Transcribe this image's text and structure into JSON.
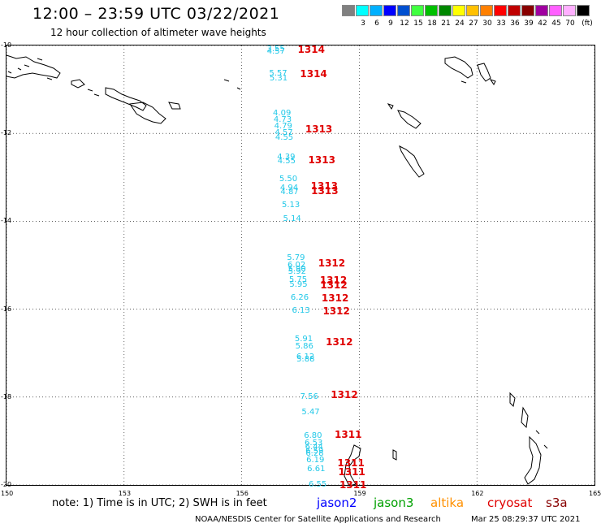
{
  "header": {
    "title": "12:00 – 23:59 UTC 03/22/2021",
    "subtitle": "12 hour collection of altimeter wave heights"
  },
  "legend": {
    "swatches": [
      {
        "color": "#808080",
        "label": ""
      },
      {
        "color": "#00ffff",
        "label": "3"
      },
      {
        "color": "#00b0ff",
        "label": "6"
      },
      {
        "color": "#0000ff",
        "label": "9"
      },
      {
        "color": "#0050d0",
        "label": "12"
      },
      {
        "color": "#40ff40",
        "label": "15"
      },
      {
        "color": "#00c000",
        "label": "18"
      },
      {
        "color": "#008800",
        "label": "21"
      },
      {
        "color": "#ffff00",
        "label": "24"
      },
      {
        "color": "#ffc000",
        "label": "27"
      },
      {
        "color": "#ff8000",
        "label": "30"
      },
      {
        "color": "#ff0000",
        "label": "33"
      },
      {
        "color": "#c00000",
        "label": "36"
      },
      {
        "color": "#880000",
        "label": "39"
      },
      {
        "color": "#a000a0",
        "label": "42"
      },
      {
        "color": "#ff60ff",
        "label": "45"
      },
      {
        "color": "#ffb0ff",
        "label": "70"
      },
      {
        "color": "#000000",
        "label": "(ft)"
      }
    ]
  },
  "axes": {
    "lat_ticks": [
      "-10",
      "-12",
      "-14",
      "-16",
      "-18",
      "-20"
    ],
    "lon_ticks": [
      "150",
      "153",
      "156",
      "159",
      "162",
      "165"
    ],
    "lat_range": [
      -20,
      -10
    ],
    "lon_range": [
      150,
      165
    ],
    "grid": true,
    "gridline_style": "dotted"
  },
  "observations": [
    {
      "lat": -10.1,
      "wave": "3.55"
    },
    {
      "lat": -10.15,
      "wave": "4.57"
    },
    {
      "lat": -10.65,
      "wave": "5.57"
    },
    {
      "lat": -10.75,
      "wave": "5.31"
    },
    {
      "lat": -11.55,
      "wave": "4.09"
    },
    {
      "lat": -11.7,
      "wave": "4.73"
    },
    {
      "lat": -11.85,
      "wave": "4.79"
    },
    {
      "lat": -12.0,
      "wave": "4.57"
    },
    {
      "lat": -12.1,
      "wave": "4.55"
    },
    {
      "lat": -12.55,
      "wave": "4.39"
    },
    {
      "lat": -12.65,
      "wave": "4.55"
    },
    {
      "lat": -13.05,
      "wave": "5.50"
    },
    {
      "lat": -13.25,
      "wave": "4.94"
    },
    {
      "lat": -13.35,
      "wave": "4.87"
    },
    {
      "lat": -13.65,
      "wave": "5.13"
    },
    {
      "lat": -13.95,
      "wave": "5.14"
    },
    {
      "lat": -14.85,
      "wave": "5.79"
    },
    {
      "lat": -15.0,
      "wave": "6.02"
    },
    {
      "lat": -15.1,
      "wave": "5.90"
    },
    {
      "lat": -15.15,
      "wave": "5.92"
    },
    {
      "lat": -15.35,
      "wave": "5.75"
    },
    {
      "lat": -15.45,
      "wave": "5.95"
    },
    {
      "lat": -15.75,
      "wave": "6.26"
    },
    {
      "lat": -16.05,
      "wave": "6.13"
    },
    {
      "lat": -16.7,
      "wave": "5.91"
    },
    {
      "lat": -16.85,
      "wave": "5.86"
    },
    {
      "lat": -17.1,
      "wave": "6.12"
    },
    {
      "lat": -17.15,
      "wave": "5.88"
    },
    {
      "lat": -18.0,
      "wave": "7.56"
    },
    {
      "lat": -18.35,
      "wave": "5.47"
    },
    {
      "lat": -18.9,
      "wave": "6.80"
    },
    {
      "lat": -19.05,
      "wave": "6.53"
    },
    {
      "lat": -19.15,
      "wave": "6.44"
    },
    {
      "lat": -19.25,
      "wave": "6.59"
    },
    {
      "lat": -19.3,
      "wave": "6.28"
    },
    {
      "lat": -19.45,
      "wave": "6.19"
    },
    {
      "lat": -19.65,
      "wave": "6.61"
    },
    {
      "lat": -20.0,
      "wave": "6.55"
    }
  ],
  "times": [
    {
      "lat": -10.1,
      "time": "1314"
    },
    {
      "lat": -10.65,
      "time": "1314"
    },
    {
      "lat": -11.9,
      "time": "1313"
    },
    {
      "lat": -12.6,
      "time": "1313"
    },
    {
      "lat": -13.2,
      "time": "1313"
    },
    {
      "lat": -13.3,
      "time": "1313"
    },
    {
      "lat": -14.95,
      "time": "1312"
    },
    {
      "lat": -15.35,
      "time": "1312"
    },
    {
      "lat": -15.45,
      "time": "1312"
    },
    {
      "lat": -15.75,
      "time": "1312"
    },
    {
      "lat": -16.05,
      "time": "1312"
    },
    {
      "lat": -16.75,
      "time": "1312"
    },
    {
      "lat": -17.95,
      "time": "1312"
    },
    {
      "lat": -18.85,
      "time": "1311"
    },
    {
      "lat": -19.5,
      "time": "1311"
    },
    {
      "lat": -19.7,
      "time": "1311"
    },
    {
      "lat": -20.0,
      "time": "1311"
    }
  ],
  "footer": {
    "note": "note: 1) Time is in UTC; 2) SWH is in feet",
    "satellites": [
      {
        "name": "jason2",
        "color": "#0000ff"
      },
      {
        "name": "jason3",
        "color": "#00a000"
      },
      {
        "name": "altika",
        "color": "#ff9000"
      },
      {
        "name": "cryosat",
        "color": "#e00000"
      },
      {
        "name": "s3a",
        "color": "#880000"
      }
    ],
    "credit": "NOAA/NESDIS Center for Satellite Applications and Research",
    "timestamp": "Mar 25 08:29:37 UTC 2021"
  }
}
